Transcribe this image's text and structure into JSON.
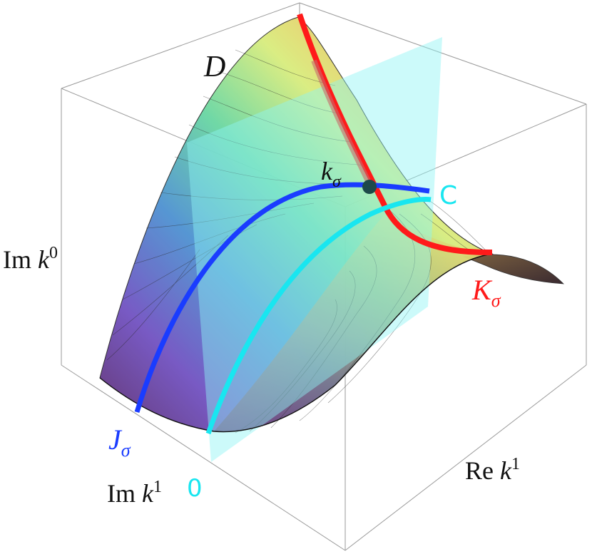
{
  "axes": {
    "z_label_prefix": "Im ",
    "z_label_var": "k",
    "z_label_sup": "0",
    "y_label_prefix": "Im ",
    "y_label_var": "k",
    "y_label_sup": "1",
    "x_label_prefix": "Re ",
    "x_label_var": "k",
    "x_label_sup": "1"
  },
  "labels": {
    "surface_D": "D",
    "point_k": "k",
    "point_k_sub": "σ",
    "curve_C": "C",
    "curve_K": "K",
    "curve_K_sub": "σ",
    "curve_J": "J",
    "curve_J_sub": "σ",
    "origin": "0"
  },
  "colors": {
    "curve_K": "#ff1a1a",
    "curve_J": "#1a3cff",
    "curve_C": "#19e6f0",
    "plane": "#8ff5f5",
    "point": "#1d4a4a",
    "box": "#9a9a9a",
    "text": "#111111"
  }
}
